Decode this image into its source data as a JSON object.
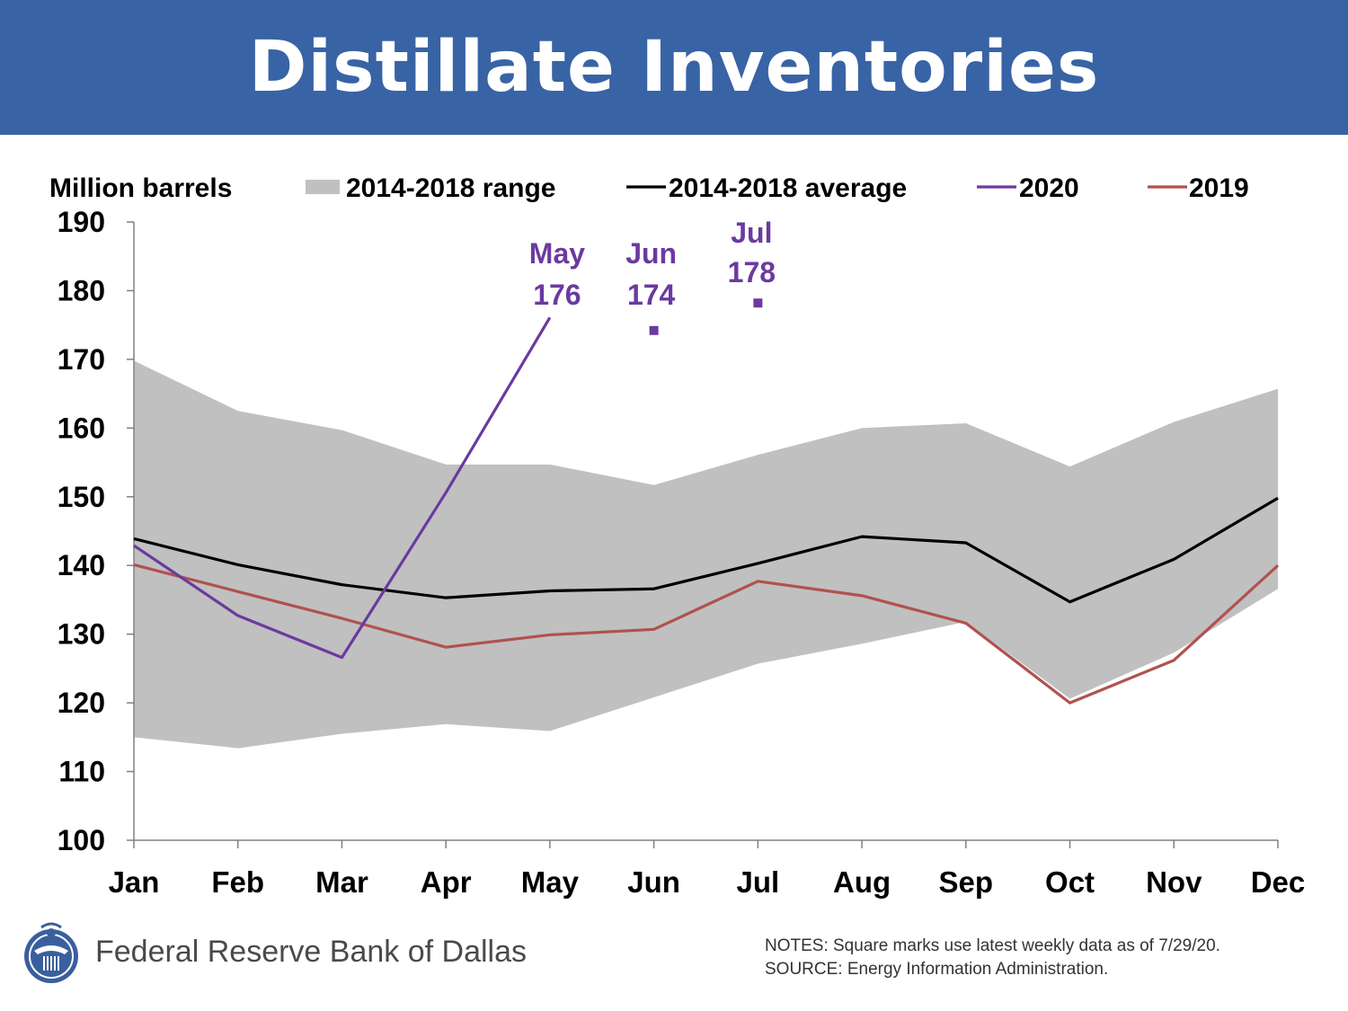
{
  "header": {
    "title": "Distillate Inventories"
  },
  "colors": {
    "header_bg": "#3863a5",
    "range_fill": "#c0c0c0",
    "average": "#000000",
    "series_2020": "#6b3a9f",
    "series_2019": "#b0524f"
  },
  "chart_data": {
    "type": "line",
    "title": "Distillate Inventories",
    "ylabel": "Million barrels",
    "xlabel": "",
    "categories": [
      "Jan",
      "Feb",
      "Mar",
      "Apr",
      "May",
      "Jun",
      "Jul",
      "Aug",
      "Sep",
      "Oct",
      "Nov",
      "Dec"
    ],
    "ylim": [
      100,
      190
    ],
    "yticks": [
      100,
      110,
      120,
      130,
      140,
      150,
      160,
      170,
      180,
      190
    ],
    "legend": [
      {
        "label": "2014-2018 range",
        "kind": "area",
        "color": "#c0c0c0"
      },
      {
        "label": "2014-2018 average",
        "kind": "line",
        "color": "#000000"
      },
      {
        "label": "2020",
        "kind": "line",
        "color": "#6b3a9f"
      },
      {
        "label": "2019",
        "kind": "line",
        "color": "#b0524f"
      }
    ],
    "range": {
      "name": "2014-2018 range",
      "upper": [
        169.8,
        162.5,
        159.7,
        154.7,
        154.7,
        151.7,
        156.1,
        160.0,
        160.7,
        154.4,
        160.9,
        165.7
      ],
      "lower": [
        115.0,
        113.4,
        115.5,
        116.9,
        115.9,
        120.8,
        125.7,
        128.6,
        131.8,
        120.6,
        127.3,
        136.6
      ]
    },
    "series": [
      {
        "name": "2014-2018 average",
        "color": "#000000",
        "values": [
          143.9,
          140.1,
          137.2,
          135.3,
          136.3,
          136.6,
          140.3,
          144.2,
          143.3,
          134.7,
          140.9,
          149.8
        ]
      },
      {
        "name": "2020",
        "color": "#6b3a9f",
        "values": [
          142.9,
          132.7,
          126.6,
          150.6,
          176.1,
          null,
          null,
          null,
          null,
          null,
          null,
          null
        ]
      },
      {
        "name": "2019",
        "color": "#b0524f",
        "values": [
          140.1,
          136.2,
          132.3,
          128.1,
          129.9,
          130.7,
          137.7,
          135.6,
          131.6,
          120.0,
          126.2,
          140.0
        ]
      }
    ],
    "weekly_marks": [
      {
        "month": "Jun",
        "value": 174.2
      },
      {
        "month": "Jul",
        "value": 178.2
      }
    ],
    "annotations": [
      {
        "month": "May",
        "label": "May",
        "value_text": "176"
      },
      {
        "month": "Jun",
        "label": "Jun",
        "value_text": "174"
      },
      {
        "month": "Jul",
        "label": "Jul",
        "value_text": "178"
      }
    ]
  },
  "footer": {
    "bank_name": "Federal Reserve Bank of Dallas",
    "notes": "NOTES: Square marks use latest weekly data as of 7/29/20.",
    "source": "SOURCE: Energy Information Administration."
  }
}
